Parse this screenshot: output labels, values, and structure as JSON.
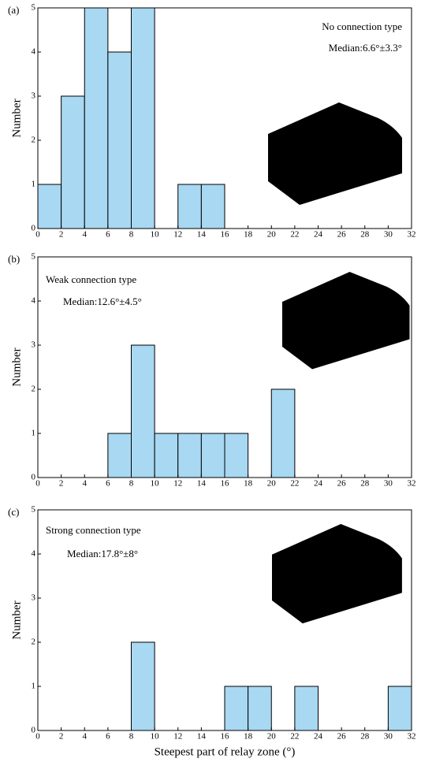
{
  "chart_data": [
    {
      "type": "histogram",
      "panel_label": "(a)",
      "ylabel": "Number",
      "annotations": [
        "No connection type",
        "Median:6.6°±3.3°"
      ],
      "bins": [
        0,
        2,
        4,
        6,
        8,
        10,
        12,
        14,
        16,
        18,
        20,
        22,
        24,
        26,
        28,
        30,
        32
      ],
      "values": [
        1,
        3,
        5,
        4,
        5,
        0,
        1,
        1,
        0,
        0,
        0,
        0,
        0,
        0,
        0,
        0
      ],
      "color": "#a8d8f2",
      "xlim": [
        0,
        32
      ],
      "ylim": [
        0,
        5
      ],
      "xticks": [
        0,
        2,
        4,
        6,
        8,
        10,
        12,
        14,
        16,
        18,
        20,
        22,
        24,
        26,
        28,
        30,
        32
      ],
      "yticks": [
        0,
        1,
        2,
        3,
        4,
        5
      ]
    },
    {
      "type": "histogram",
      "panel_label": "(b)",
      "ylabel": "Number",
      "annotations": [
        "Weak connection type",
        "Median:12.6°±4.5°"
      ],
      "bins": [
        0,
        2,
        4,
        6,
        8,
        10,
        12,
        14,
        16,
        18,
        20,
        22,
        24,
        26,
        28,
        30,
        32
      ],
      "values": [
        0,
        0,
        0,
        1,
        3,
        1,
        1,
        1,
        1,
        0,
        2,
        0,
        0,
        0,
        0,
        0
      ],
      "color": "#a8d8f2",
      "xlim": [
        0,
        32
      ],
      "ylim": [
        0,
        5
      ],
      "xticks": [
        0,
        2,
        4,
        6,
        8,
        10,
        12,
        14,
        16,
        18,
        20,
        22,
        24,
        26,
        28,
        30,
        32
      ],
      "yticks": [
        0,
        1,
        2,
        3,
        4,
        5
      ]
    },
    {
      "type": "histogram",
      "panel_label": "(c)",
      "ylabel": "Number",
      "xlabel": "Steepest part of relay zone (°)",
      "annotations": [
        "Strong connection type",
        "Median:17.8°±8°"
      ],
      "bins": [
        0,
        2,
        4,
        6,
        8,
        10,
        12,
        14,
        16,
        18,
        20,
        22,
        24,
        26,
        28,
        30,
        32
      ],
      "values": [
        0,
        0,
        0,
        0,
        2,
        0,
        0,
        0,
        1,
        1,
        0,
        1,
        0,
        0,
        0,
        1
      ],
      "color": "#a8d8f2",
      "xlim": [
        0,
        32
      ],
      "ylim": [
        0,
        5
      ],
      "xticks": [
        0,
        2,
        4,
        6,
        8,
        10,
        12,
        14,
        16,
        18,
        20,
        22,
        24,
        26,
        28,
        30,
        32
      ],
      "yticks": [
        0,
        1,
        2,
        3,
        4,
        5
      ]
    }
  ]
}
